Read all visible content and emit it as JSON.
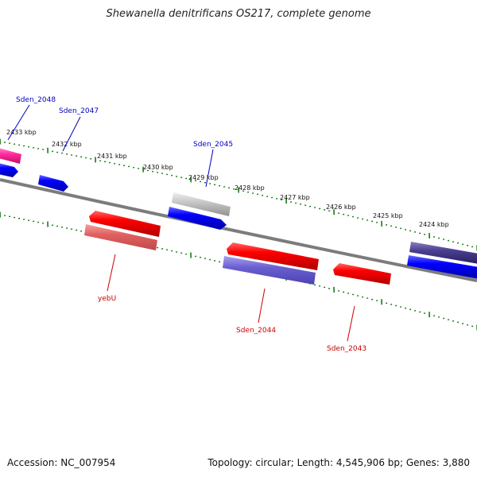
{
  "title": "Shewanella denitrificans OS217, complete genome",
  "footer": {
    "accession": "Accession: NC_007954",
    "summary": "Topology: circular; Length: 4,545,906 bp; Genes: 3,880"
  },
  "colors": {
    "backbone": "#808080",
    "tick": "#1a7a1a",
    "forward_label": "#0000c0",
    "reverse_label": "#cc0000"
  },
  "scale_labels": [
    "2433 kbp",
    "2432 kbp",
    "2431 kbp",
    "2430 kbp",
    "2429 kbp",
    "2428 kbp",
    "2427 kbp",
    "2426 kbp",
    "2425 kbp",
    "2424 kbp"
  ],
  "gene_labels": {
    "top": [
      "Sden_2048",
      "Sden_2047",
      "Sden_2045"
    ],
    "bottom": [
      "yebU",
      "Sden_2044",
      "Sden_2043"
    ]
  }
}
